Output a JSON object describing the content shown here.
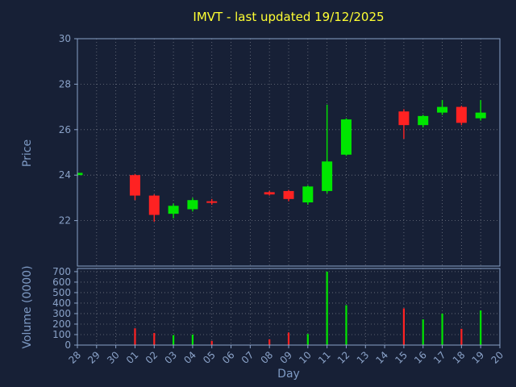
{
  "colors": {
    "background": "#172036",
    "axis": "#8aa2c8",
    "label": "#7e9ac4",
    "title": "#ffff33",
    "grid": "rgba(255,255,255,0.38)",
    "up": "#00e600",
    "down": "#ff2222"
  },
  "chart_data": {
    "type": "candlestick",
    "title": "IMVT - last updated 19/12/2025",
    "xlabel": "Day",
    "price_axis_label": "Price",
    "volume_axis_label": "Volume (0000)",
    "x_categories": [
      "28",
      "29",
      "30",
      "01",
      "02",
      "03",
      "04",
      "05",
      "06",
      "07",
      "08",
      "09",
      "10",
      "11",
      "12",
      "13",
      "14",
      "15",
      "16",
      "17",
      "18",
      "19",
      "20"
    ],
    "price_ylim": [
      20,
      30
    ],
    "price_yticks": [
      22,
      24,
      26,
      28,
      30
    ],
    "volume_ylim": [
      0,
      730
    ],
    "volume_yticks": [
      0,
      100,
      200,
      300,
      400,
      500,
      600,
      700
    ],
    "legend": "none",
    "grid": "dotted",
    "series": [
      {
        "day": "28",
        "open": 24.0,
        "high": 24.1,
        "low": 23.95,
        "close": 24.1,
        "volume": 0
      },
      {
        "day": "01",
        "open": 24.0,
        "high": 24.05,
        "low": 22.9,
        "close": 23.1,
        "volume": 160
      },
      {
        "day": "02",
        "open": 23.1,
        "high": 23.15,
        "low": 21.95,
        "close": 22.25,
        "volume": 115
      },
      {
        "day": "03",
        "open": 22.3,
        "high": 22.75,
        "low": 22.1,
        "close": 22.65,
        "volume": 95
      },
      {
        "day": "04",
        "open": 22.5,
        "high": 23.0,
        "low": 22.4,
        "close": 22.9,
        "volume": 100
      },
      {
        "day": "05",
        "open": 22.85,
        "high": 22.95,
        "low": 22.7,
        "close": 22.8,
        "volume": 40
      },
      {
        "day": "08",
        "open": 23.25,
        "high": 23.3,
        "low": 23.1,
        "close": 23.15,
        "volume": 55
      },
      {
        "day": "09",
        "open": 23.3,
        "high": 23.35,
        "low": 22.85,
        "close": 22.95,
        "volume": 120
      },
      {
        "day": "10",
        "open": 22.8,
        "high": 23.55,
        "low": 22.7,
        "close": 23.5,
        "volume": 105
      },
      {
        "day": "11",
        "open": 23.3,
        "high": 27.1,
        "low": 23.2,
        "close": 24.6,
        "volume": 700
      },
      {
        "day": "12",
        "open": 24.9,
        "high": 26.5,
        "low": 24.85,
        "close": 26.45,
        "volume": 380
      },
      {
        "day": "15",
        "open": 26.8,
        "high": 26.9,
        "low": 25.6,
        "close": 26.2,
        "volume": 350
      },
      {
        "day": "16",
        "open": 26.2,
        "high": 26.65,
        "low": 26.1,
        "close": 26.6,
        "volume": 245
      },
      {
        "day": "17",
        "open": 26.75,
        "high": 27.3,
        "low": 26.65,
        "close": 27.0,
        "volume": 300
      },
      {
        "day": "18",
        "open": 27.0,
        "high": 27.05,
        "low": 26.2,
        "close": 26.3,
        "volume": 155
      },
      {
        "day": "19",
        "open": 26.5,
        "high": 27.3,
        "low": 26.4,
        "close": 26.75,
        "volume": 330
      }
    ]
  }
}
